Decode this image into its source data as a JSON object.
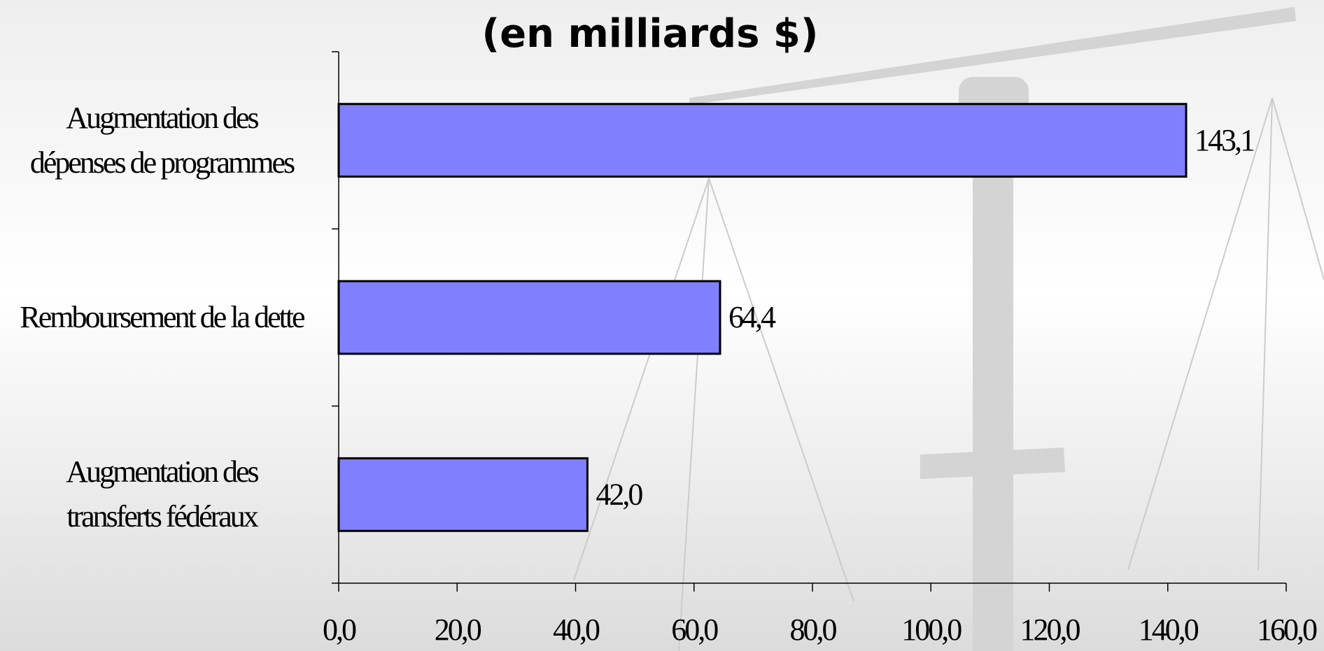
{
  "chart_data": {
    "type": "bar",
    "orientation": "horizontal",
    "title": "(en milliards $)",
    "categories": [
      "Augmentation des\ndépenses de programmes",
      "Remboursement de la dette",
      "Augmentation des\ntransferts fédéraux"
    ],
    "values": [
      143.1,
      64.4,
      42.0
    ],
    "value_labels": [
      "143,1",
      "64,4",
      "42,0"
    ],
    "color": "#8080ff",
    "xlim": [
      0,
      160
    ],
    "xticks": [
      {
        "value": 0,
        "label": "0,0"
      },
      {
        "value": 20,
        "label": "20,0"
      },
      {
        "value": 40,
        "label": "40,0"
      },
      {
        "value": 60,
        "label": "60,0"
      },
      {
        "value": 80,
        "label": "80,0"
      },
      {
        "value": 100,
        "label": "100,0"
      },
      {
        "value": 120,
        "label": "120,0"
      },
      {
        "value": 140,
        "label": "140,0"
      },
      {
        "value": 160,
        "label": "160,0"
      }
    ],
    "grid": false
  }
}
